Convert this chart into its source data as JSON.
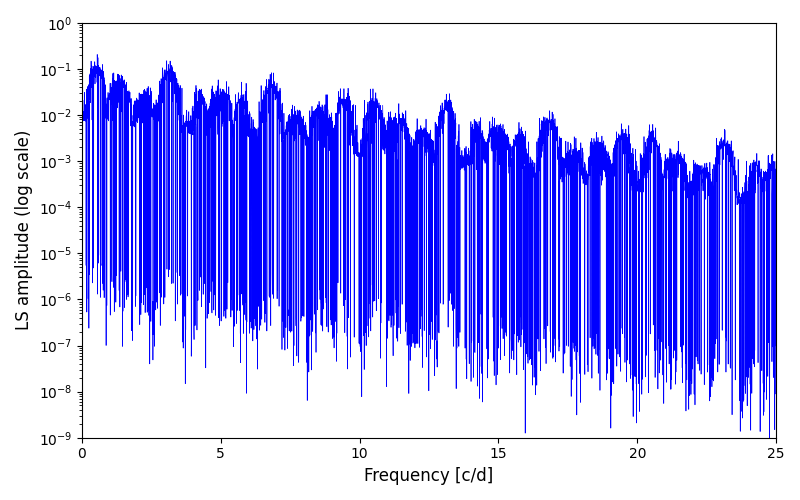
{
  "xlabel": "Frequency [c/d]",
  "ylabel": "LS amplitude (log scale)",
  "line_color": "#0000ff",
  "xlim": [
    0,
    25
  ],
  "ylim_log": [
    -9,
    0
  ],
  "background_color": "#ffffff",
  "figsize": [
    8.0,
    5.0
  ],
  "dpi": 100,
  "seed": 42,
  "n_points": 5000,
  "freq_max": 25.0
}
